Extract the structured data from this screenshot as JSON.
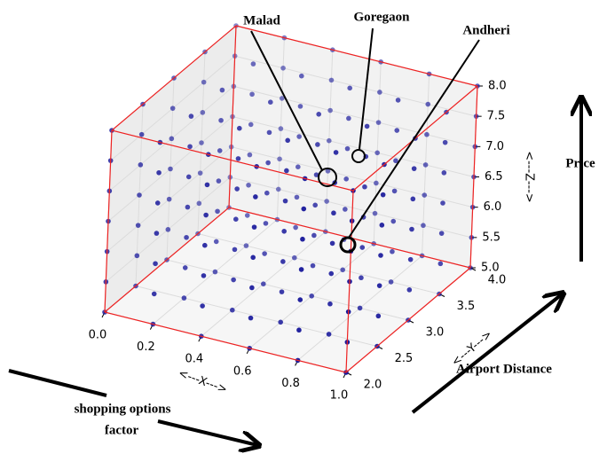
{
  "chart_data": {
    "type": "scatter3d",
    "xlabel": "<---X--->",
    "ylabel": "<---Y--->",
    "zlabel": "<---Z--->",
    "xlim": [
      0,
      1
    ],
    "ylim": [
      2,
      4
    ],
    "zlim": [
      5,
      8
    ],
    "xticks": [
      {
        "value": 0,
        "label": "0.0"
      },
      0.2,
      0.4,
      0.6,
      0.8,
      {
        "value": 1,
        "label": "1.0"
      }
    ],
    "yticks": [
      {
        "value": 2,
        "label": "2.0"
      },
      2.5,
      {
        "value": 3,
        "label": "3.0"
      },
      3.5,
      {
        "value": 4,
        "label": "4.0"
      }
    ],
    "zticks": [
      {
        "value": 5,
        "label": "5.0"
      },
      5.5,
      {
        "value": 6,
        "label": "6.0"
      },
      6.5,
      {
        "value": 7,
        "label": "7.0"
      },
      7.5,
      {
        "value": 8,
        "label": "8.0"
      }
    ],
    "grid_x": [
      0,
      0.2,
      0.4,
      0.6,
      0.8,
      1
    ],
    "grid_y": [
      2,
      2.5,
      3,
      3.5,
      4
    ],
    "grid_z": [
      5,
      5.5,
      6,
      6.5,
      7,
      7.5,
      8
    ],
    "color": "#1a1a9c",
    "edge_color": "#ee2222",
    "annotations": [
      "Malad",
      "Goregaon",
      "Andheri",
      "Price",
      "Airport Distance",
      "shopping options",
      "factor"
    ]
  }
}
